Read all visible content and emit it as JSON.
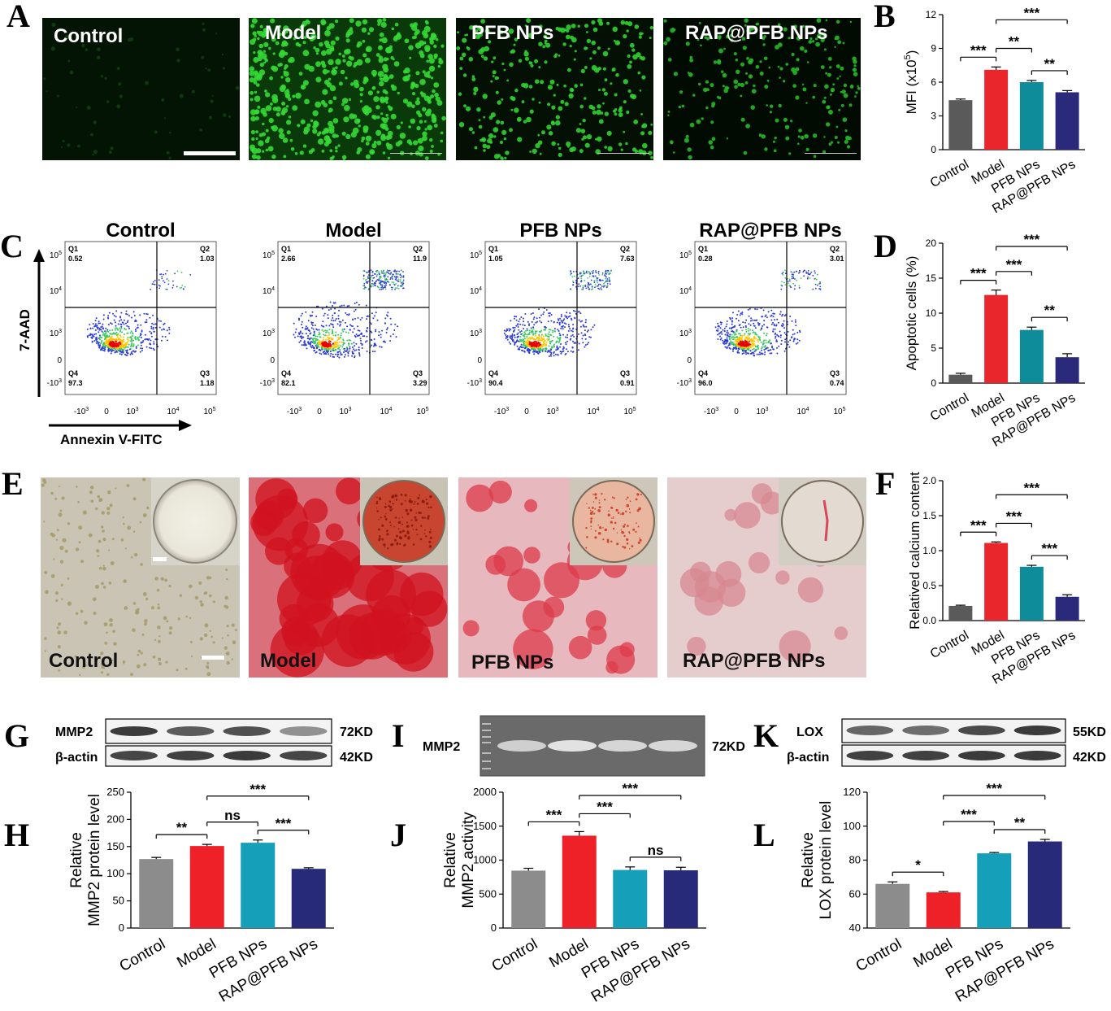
{
  "panel_letters": {
    "A": "A",
    "B": "B",
    "C": "C",
    "D": "D",
    "E": "E",
    "F": "F",
    "G": "G",
    "H": "H",
    "I": "I",
    "J": "J",
    "K": "K",
    "L": "L"
  },
  "colors": {
    "control": "#5a5a5a",
    "model": "#e8262c",
    "pfb": "#0e8c9a",
    "rap": "#2b2a7a"
  },
  "groups": [
    "Control",
    "Model",
    "PFB NPs",
    "RAP@PFB NPs"
  ],
  "panel_a": {
    "labels": [
      "Control",
      "Model",
      "PFB NPs",
      "RAP@PFB NPs"
    ]
  },
  "panel_c": {
    "ylabel": "7-AAD",
    "xlabel": "Annexin V-FITC",
    "plots": [
      {
        "title": "Control",
        "q1": "0.52",
        "q2": "1.03",
        "q3": "1.18",
        "q4": "97.3"
      },
      {
        "title": "Model",
        "q1": "2.66",
        "q2": "11.9",
        "q3": "3.29",
        "q4": "82.1"
      },
      {
        "title": "PFB NPs",
        "q1": "1.05",
        "q2": "7.63",
        "q3": "0.91",
        "q4": "90.4"
      },
      {
        "title": "RAP@PFB NPs",
        "q1": "0.28",
        "q2": "3.01",
        "q3": "0.74",
        "q4": "96.0"
      }
    ],
    "quadrant_names": [
      "Q1",
      "Q2",
      "Q3",
      "Q4"
    ]
  },
  "panel_e": {
    "labels": [
      "Control",
      "Model",
      "PFB NPs",
      "RAP@PFB NPs"
    ]
  },
  "blots": {
    "g": {
      "rows": [
        {
          "name": "MMP2",
          "size": "72KD"
        },
        {
          "name": "β-actin",
          "size": "42KD"
        }
      ]
    },
    "i": {
      "rows": [
        {
          "name": "MMP2",
          "size": "72KD"
        }
      ]
    },
    "k": {
      "rows": [
        {
          "name": "LOX",
          "size": "55KD"
        },
        {
          "name": "β-actin",
          "size": "42KD"
        }
      ]
    }
  },
  "chart_data": [
    {
      "panel": "B",
      "type": "bar",
      "categories": [
        "Control",
        "Model",
        "PFB NPs",
        "RAP@PFB NPs"
      ],
      "values": [
        4.4,
        7.1,
        6.0,
        5.1
      ],
      "errors": [
        0.1,
        0.25,
        0.15,
        0.15
      ],
      "ylabel": "MFI (x10",
      "ylabel_sup": "5",
      "ylabel_end": ")",
      "ylim": [
        0,
        12
      ],
      "ticks": [
        0,
        3,
        6,
        9,
        12
      ],
      "colors": [
        "#5a5a5a",
        "#e8262c",
        "#0e8c9a",
        "#2b2a7a"
      ],
      "sig": [
        {
          "from": 0,
          "to": 1,
          "label": "***",
          "level": 0
        },
        {
          "from": 1,
          "to": 2,
          "label": "**",
          "level": 1
        },
        {
          "from": 2,
          "to": 3,
          "label": "**",
          "level": 0
        },
        {
          "from": 1,
          "to": 3,
          "label": "***",
          "level": 2
        }
      ]
    },
    {
      "panel": "D",
      "type": "bar",
      "categories": [
        "Control",
        "Model",
        "PFB NPs",
        "RAP@PFB NPs"
      ],
      "values": [
        1.2,
        12.6,
        7.6,
        3.7
      ],
      "errors": [
        0.2,
        0.7,
        0.4,
        0.5
      ],
      "ylabel": "Apoptotic cells (%)",
      "ylim": [
        0,
        20
      ],
      "ticks": [
        0,
        5,
        10,
        15,
        20
      ],
      "colors": [
        "#5a5a5a",
        "#e8262c",
        "#0e8c9a",
        "#2b2a7a"
      ],
      "sig": [
        {
          "from": 0,
          "to": 1,
          "label": "***",
          "level": 0
        },
        {
          "from": 1,
          "to": 2,
          "label": "***",
          "level": 1
        },
        {
          "from": 2,
          "to": 3,
          "label": "**",
          "level": 0
        },
        {
          "from": 1,
          "to": 3,
          "label": "***",
          "level": 2
        }
      ]
    },
    {
      "panel": "F",
      "type": "bar",
      "categories": [
        "Control",
        "Model",
        "PFB NPs",
        "RAP@PFB NPs"
      ],
      "values": [
        0.21,
        1.11,
        0.77,
        0.34
      ],
      "errors": [
        0.01,
        0.015,
        0.02,
        0.03
      ],
      "ylabel": "Relatived calcium content",
      "ylim": [
        0,
        2.0
      ],
      "ticks": [
        0.0,
        0.5,
        1.0,
        1.5,
        2.0
      ],
      "tick_labels": [
        "0.0",
        "0.5",
        "1.0",
        "1.5",
        "2.0"
      ],
      "colors": [
        "#5a5a5a",
        "#e8262c",
        "#0e8c9a",
        "#2b2a7a"
      ],
      "sig": [
        {
          "from": 0,
          "to": 1,
          "label": "***",
          "level": 0
        },
        {
          "from": 1,
          "to": 2,
          "label": "***",
          "level": 1
        },
        {
          "from": 2,
          "to": 3,
          "label": "***",
          "level": 0
        },
        {
          "from": 1,
          "to": 3,
          "label": "***",
          "level": 2
        }
      ]
    },
    {
      "panel": "H",
      "type": "bar",
      "categories": [
        "Control",
        "Model",
        "PFB NPs",
        "RAP@PFB NPs"
      ],
      "values": [
        127,
        151,
        157,
        109
      ],
      "errors": [
        3,
        3,
        5,
        2
      ],
      "ylabel": "Relative",
      "ylabel2": "MMP2 protein level",
      "ylim": [
        0,
        250
      ],
      "ticks": [
        0,
        50,
        100,
        150,
        200,
        250
      ],
      "colors": [
        "#8c8c8c",
        "#ee2128",
        "#169fb8",
        "#262a78"
      ],
      "sig": [
        {
          "from": 0,
          "to": 1,
          "label": "**",
          "level": 0
        },
        {
          "from": 1,
          "to": 2,
          "label": "ns",
          "level": 1
        },
        {
          "from": 2,
          "to": 3,
          "label": "***",
          "level": 0
        },
        {
          "from": 1,
          "to": 3,
          "label": "***",
          "level": 2
        }
      ]
    },
    {
      "panel": "J",
      "type": "bar",
      "categories": [
        "Control",
        "Model",
        "PFB NPs",
        "RAP@PFB NPs"
      ],
      "values": [
        845,
        1360,
        855,
        850
      ],
      "errors": [
        35,
        60,
        45,
        45
      ],
      "ylabel": "Relative",
      "ylabel2": "MMP2 activity",
      "ylim": [
        0,
        2000
      ],
      "ticks": [
        0,
        500,
        1000,
        1500,
        2000
      ],
      "colors": [
        "#8c8c8c",
        "#ee2128",
        "#169fb8",
        "#262a78"
      ],
      "sig": [
        {
          "from": 0,
          "to": 1,
          "label": "***",
          "level": 0
        },
        {
          "from": 1,
          "to": 2,
          "label": "***",
          "level": 1
        },
        {
          "from": 2,
          "to": 3,
          "label": "ns",
          "level": 0
        },
        {
          "from": 1,
          "to": 3,
          "label": "***",
          "level": 2
        }
      ]
    },
    {
      "panel": "L",
      "type": "bar",
      "categories": [
        "Control",
        "Model",
        "PFB NPs",
        "RAP@PFB NPs"
      ],
      "values": [
        66,
        61,
        84,
        91
      ],
      "errors": [
        1.2,
        0.5,
        0.5,
        1.2
      ],
      "ylabel": "Relative",
      "ylabel2": "LOX protein level",
      "ylim": [
        40,
        120
      ],
      "ticks": [
        40,
        60,
        80,
        100,
        120
      ],
      "colors": [
        "#8c8c8c",
        "#ee2128",
        "#169fb8",
        "#262a78"
      ],
      "sig": [
        {
          "from": 0,
          "to": 1,
          "label": "*",
          "level": 0
        },
        {
          "from": 2,
          "to": 3,
          "label": "**",
          "level": 0
        },
        {
          "from": 1,
          "to": 2,
          "label": "***",
          "level": 1
        },
        {
          "from": 1,
          "to": 3,
          "label": "***",
          "level": 2
        }
      ]
    }
  ]
}
